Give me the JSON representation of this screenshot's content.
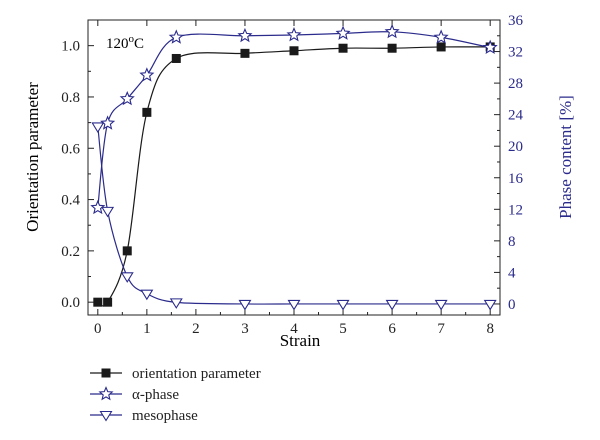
{
  "chart_data": {
    "type": "line",
    "annotation": {
      "text": "120",
      "sup": "o",
      "unit": "C"
    },
    "xlabel": "Strain",
    "ylabel_left": "Orientation parameter",
    "ylabel_right": "Phase content [%]",
    "xlim": [
      -0.2,
      8.2
    ],
    "ylim_left": [
      -0.05,
      1.1
    ],
    "ylim_right": [
      -1.4,
      36
    ],
    "x_ticks": [
      0,
      1,
      2,
      3,
      4,
      5,
      6,
      7,
      8
    ],
    "x_tick_labels": [
      "0",
      "1",
      "2",
      "3",
      "4",
      "5",
      "6",
      "7",
      "8"
    ],
    "y_left_ticks": [
      0.0,
      0.2,
      0.4,
      0.6,
      0.8,
      1.0
    ],
    "y_left_tick_labels": [
      "0.0",
      "0.2",
      "0.4",
      "0.6",
      "0.8",
      "1.0"
    ],
    "y_right_ticks": [
      0,
      4,
      8,
      12,
      16,
      20,
      24,
      28,
      32,
      36
    ],
    "y_right_tick_labels": [
      "0",
      "4",
      "8",
      "12",
      "16",
      "20",
      "24",
      "28",
      "32",
      "36"
    ],
    "grid": false,
    "legend_position": "bottom-left, below plot",
    "colors": {
      "black_series": "#1a1a1a",
      "blue_series": "#2b2b8c",
      "right_axis": "#2b2b8c"
    },
    "series": [
      {
        "name": "orientation parameter",
        "axis": "left",
        "marker": "filled-square",
        "color": "#1a1a1a",
        "x": [
          0,
          0.2,
          0.6,
          1.0,
          1.6,
          3.0,
          4.0,
          5.0,
          6.0,
          7.0,
          8.0
        ],
        "y": [
          0.0,
          0.0,
          0.2,
          0.74,
          0.95,
          0.97,
          0.98,
          0.99,
          0.99,
          0.995,
          0.995
        ]
      },
      {
        "name": "α-phase",
        "axis": "right",
        "marker": "open-star",
        "color": "#2b2b8c",
        "x": [
          0,
          0.2,
          0.6,
          1.0,
          1.6,
          3.0,
          4.0,
          5.0,
          6.0,
          7.0,
          8.0
        ],
        "y": [
          12.2,
          22.9,
          26.0,
          29.0,
          33.8,
          34.0,
          34.1,
          34.3,
          34.5,
          33.8,
          32.5
        ]
      },
      {
        "name": "mesophase",
        "axis": "right",
        "marker": "open-down-triangle",
        "color": "#2b2b8c",
        "x": [
          0,
          0.2,
          0.6,
          1.0,
          1.6,
          3.0,
          4.0,
          5.0,
          6.0,
          7.0,
          8.0
        ],
        "y": [
          22.5,
          11.8,
          3.5,
          1.3,
          0.2,
          0.0,
          0.0,
          0.0,
          0.0,
          0.0,
          0.0
        ]
      }
    ],
    "legend": [
      {
        "label": "orientation parameter",
        "series": 0
      },
      {
        "label": "α-phase",
        "series": 1
      },
      {
        "label": "mesophase",
        "series": 2
      }
    ]
  }
}
